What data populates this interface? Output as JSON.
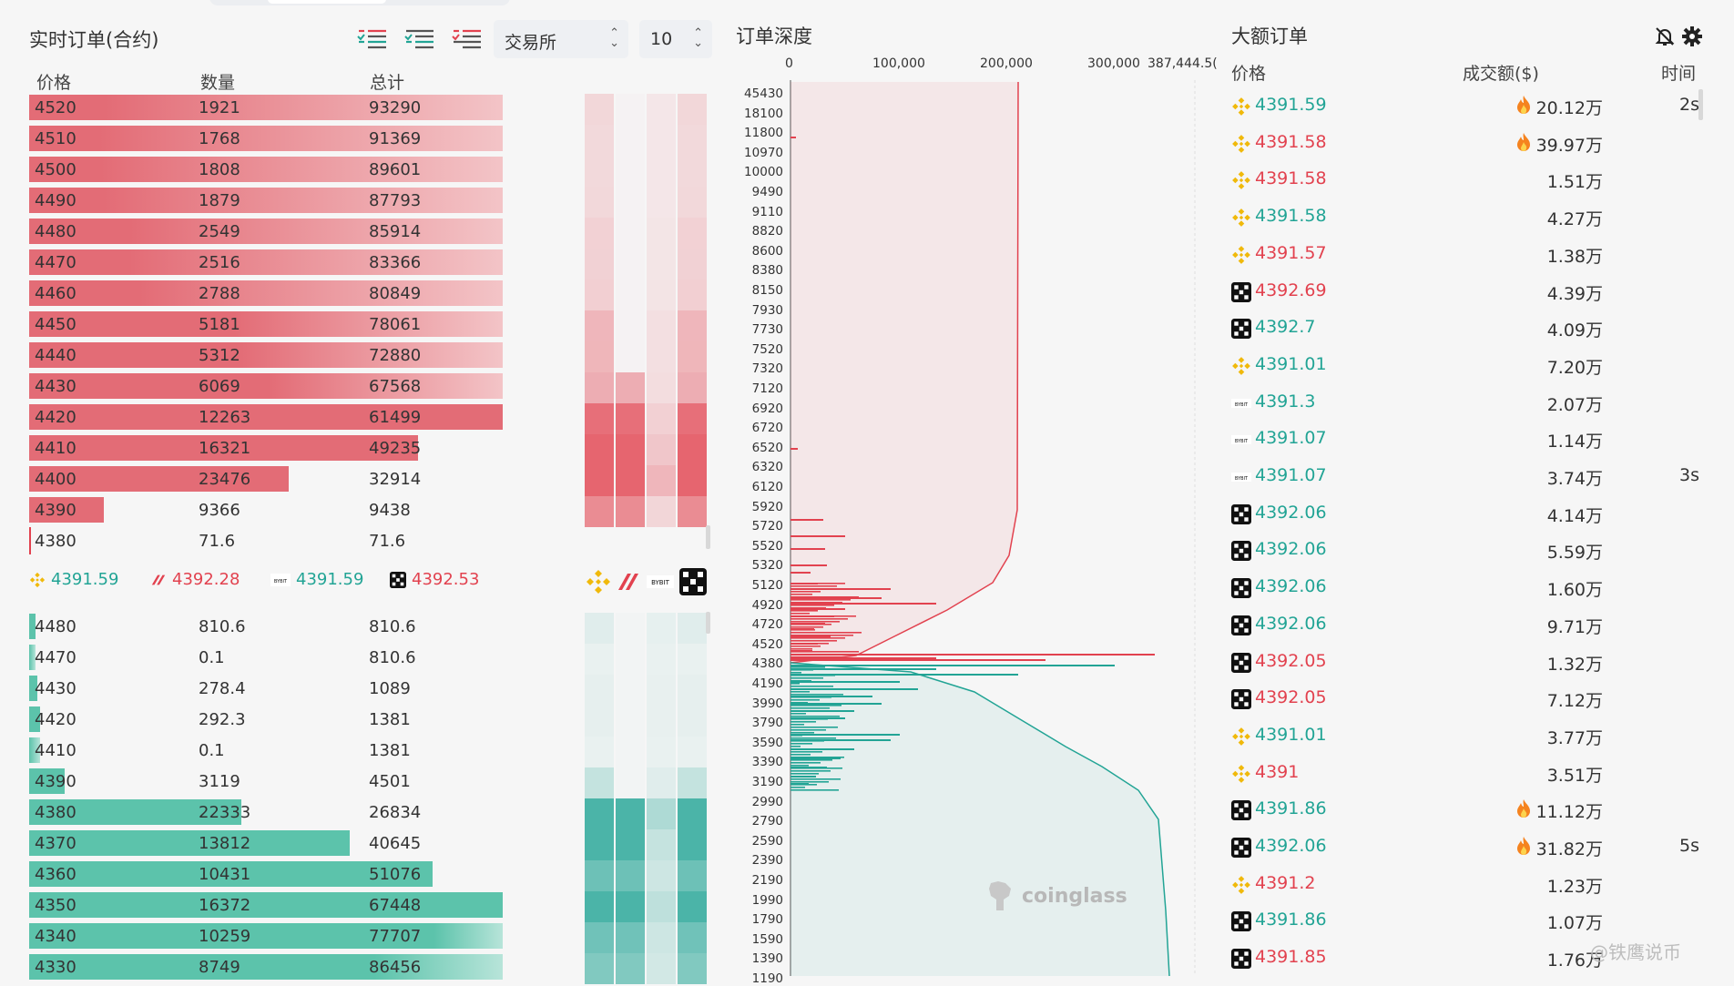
{
  "left": {
    "title": "实时订单(合约)",
    "exchange_select": "交易所",
    "depth_select": "10",
    "headers": {
      "price": "价格",
      "qty": "数量",
      "total": "总计"
    },
    "asks": [
      {
        "price": "4520",
        "qty": "1921",
        "total": "93290"
      },
      {
        "price": "4510",
        "qty": "1768",
        "total": "91369"
      },
      {
        "price": "4500",
        "qty": "1808",
        "total": "89601"
      },
      {
        "price": "4490",
        "qty": "1879",
        "total": "87793"
      },
      {
        "price": "4480",
        "qty": "2549",
        "total": "85914"
      },
      {
        "price": "4470",
        "qty": "2516",
        "total": "83366"
      },
      {
        "price": "4460",
        "qty": "2788",
        "total": "80849"
      },
      {
        "price": "4450",
        "qty": "5181",
        "total": "78061"
      },
      {
        "price": "4440",
        "qty": "5312",
        "total": "72880"
      },
      {
        "price": "4430",
        "qty": "6069",
        "total": "67568"
      },
      {
        "price": "4420",
        "qty": "12263",
        "total": "61499"
      },
      {
        "price": "4410",
        "qty": "16321",
        "total": "49235"
      },
      {
        "price": "4400",
        "qty": "23476",
        "total": "32914"
      },
      {
        "price": "4390",
        "qty": "9366",
        "total": "9438"
      },
      {
        "price": "4380",
        "qty": "71.6",
        "total": "71.6"
      }
    ],
    "tickers": [
      {
        "exchange": "binance",
        "price": "4391.59",
        "dir": "up"
      },
      {
        "exchange": "bitget",
        "price": "4392.28",
        "dir": "dn"
      },
      {
        "exchange": "bybit",
        "price": "4391.59",
        "dir": "up"
      },
      {
        "exchange": "okx",
        "price": "4392.53",
        "dir": "dn"
      }
    ],
    "bids": [
      {
        "price": "4480",
        "qty": "810.6",
        "total": "810.6"
      },
      {
        "price": "4470",
        "qty": "0.1",
        "total": "810.6"
      },
      {
        "price": "4430",
        "qty": "278.4",
        "total": "1089"
      },
      {
        "price": "4420",
        "qty": "292.3",
        "total": "1381"
      },
      {
        "price": "4410",
        "qty": "0.1",
        "total": "1381"
      },
      {
        "price": "4390",
        "qty": "3119",
        "total": "4501"
      },
      {
        "price": "4380",
        "qty": "22333",
        "total": "26834"
      },
      {
        "price": "4370",
        "qty": "13812",
        "total": "40645"
      },
      {
        "price": "4360",
        "qty": "10431",
        "total": "51076"
      },
      {
        "price": "4350",
        "qty": "16372",
        "total": "67448"
      },
      {
        "price": "4340",
        "qty": "10259",
        "total": "77707"
      },
      {
        "price": "4330",
        "qty": "8749",
        "total": "86456"
      }
    ]
  },
  "depth": {
    "title": "订单深度",
    "x_ticks": [
      "0",
      "100,000",
      "200,000",
      "300,000",
      "387,444.5("
    ],
    "price_labels": [
      "45430",
      "18100",
      "11800",
      "10970",
      "10000",
      "9490",
      "9110",
      "8820",
      "8600",
      "8380",
      "8150",
      "7930",
      "7730",
      "7520",
      "7320",
      "7120",
      "6920",
      "6720",
      "6520",
      "6320",
      "6120",
      "5920",
      "5720",
      "5520",
      "5320",
      "5120",
      "4920",
      "4720",
      "4520",
      "4380",
      "4190",
      "3990",
      "3790",
      "3590",
      "3390",
      "3190",
      "2990",
      "2790",
      "2590",
      "2390",
      "2190",
      "1990",
      "1790",
      "1590",
      "1390",
      "1190"
    ],
    "brand": "coinglass"
  },
  "big_orders": {
    "title": "大额订单",
    "headers": {
      "price": "价格",
      "amount": "成交额($)",
      "time": "时间"
    },
    "rows": [
      {
        "ex": "binance",
        "price": "4391.59",
        "dir": "up",
        "amount": "20.12万",
        "fire": true,
        "time": "2s"
      },
      {
        "ex": "binance",
        "price": "4391.58",
        "dir": "dn",
        "amount": "39.97万",
        "fire": true,
        "time": ""
      },
      {
        "ex": "binance",
        "price": "4391.58",
        "dir": "dn",
        "amount": "1.51万",
        "fire": false,
        "time": ""
      },
      {
        "ex": "binance",
        "price": "4391.58",
        "dir": "up",
        "amount": "4.27万",
        "fire": false,
        "time": ""
      },
      {
        "ex": "binance",
        "price": "4391.57",
        "dir": "dn",
        "amount": "1.38万",
        "fire": false,
        "time": ""
      },
      {
        "ex": "okx",
        "price": "4392.69",
        "dir": "dn",
        "amount": "4.39万",
        "fire": false,
        "time": ""
      },
      {
        "ex": "okx",
        "price": "4392.7",
        "dir": "up",
        "amount": "4.09万",
        "fire": false,
        "time": ""
      },
      {
        "ex": "binance",
        "price": "4391.01",
        "dir": "up",
        "amount": "7.20万",
        "fire": false,
        "time": ""
      },
      {
        "ex": "bybit",
        "price": "4391.3",
        "dir": "up",
        "amount": "2.07万",
        "fire": false,
        "time": ""
      },
      {
        "ex": "bybit",
        "price": "4391.07",
        "dir": "up",
        "amount": "1.14万",
        "fire": false,
        "time": ""
      },
      {
        "ex": "bybit",
        "price": "4391.07",
        "dir": "up",
        "amount": "3.74万",
        "fire": false,
        "time": "3s"
      },
      {
        "ex": "okx",
        "price": "4392.06",
        "dir": "up",
        "amount": "4.14万",
        "fire": false,
        "time": ""
      },
      {
        "ex": "okx",
        "price": "4392.06",
        "dir": "up",
        "amount": "5.59万",
        "fire": false,
        "time": ""
      },
      {
        "ex": "okx",
        "price": "4392.06",
        "dir": "up",
        "amount": "1.60万",
        "fire": false,
        "time": ""
      },
      {
        "ex": "okx",
        "price": "4392.06",
        "dir": "up",
        "amount": "9.71万",
        "fire": false,
        "time": ""
      },
      {
        "ex": "okx",
        "price": "4392.05",
        "dir": "dn",
        "amount": "1.32万",
        "fire": false,
        "time": ""
      },
      {
        "ex": "okx",
        "price": "4392.05",
        "dir": "dn",
        "amount": "7.12万",
        "fire": false,
        "time": ""
      },
      {
        "ex": "binance",
        "price": "4391.01",
        "dir": "up",
        "amount": "3.77万",
        "fire": false,
        "time": ""
      },
      {
        "ex": "binance",
        "price": "4391",
        "dir": "dn",
        "amount": "3.51万",
        "fire": false,
        "time": ""
      },
      {
        "ex": "okx",
        "price": "4391.86",
        "dir": "up",
        "amount": "11.12万",
        "fire": true,
        "time": ""
      },
      {
        "ex": "okx",
        "price": "4392.06",
        "dir": "up",
        "amount": "31.82万",
        "fire": true,
        "time": "5s"
      },
      {
        "ex": "binance",
        "price": "4391.2",
        "dir": "dn",
        "amount": "1.23万",
        "fire": false,
        "time": ""
      },
      {
        "ex": "okx",
        "price": "4391.86",
        "dir": "up",
        "amount": "1.07万",
        "fire": false,
        "time": ""
      },
      {
        "ex": "okx",
        "price": "4391.85",
        "dir": "dn",
        "amount": "1.76万",
        "fire": false,
        "time": ""
      }
    ]
  },
  "credit": "@铁鹰说币",
  "colors": {
    "ask": "#e2424f",
    "bid": "#22a495",
    "ask_bar": "#e8747c",
    "bid_bar": "#6ccbb5"
  }
}
